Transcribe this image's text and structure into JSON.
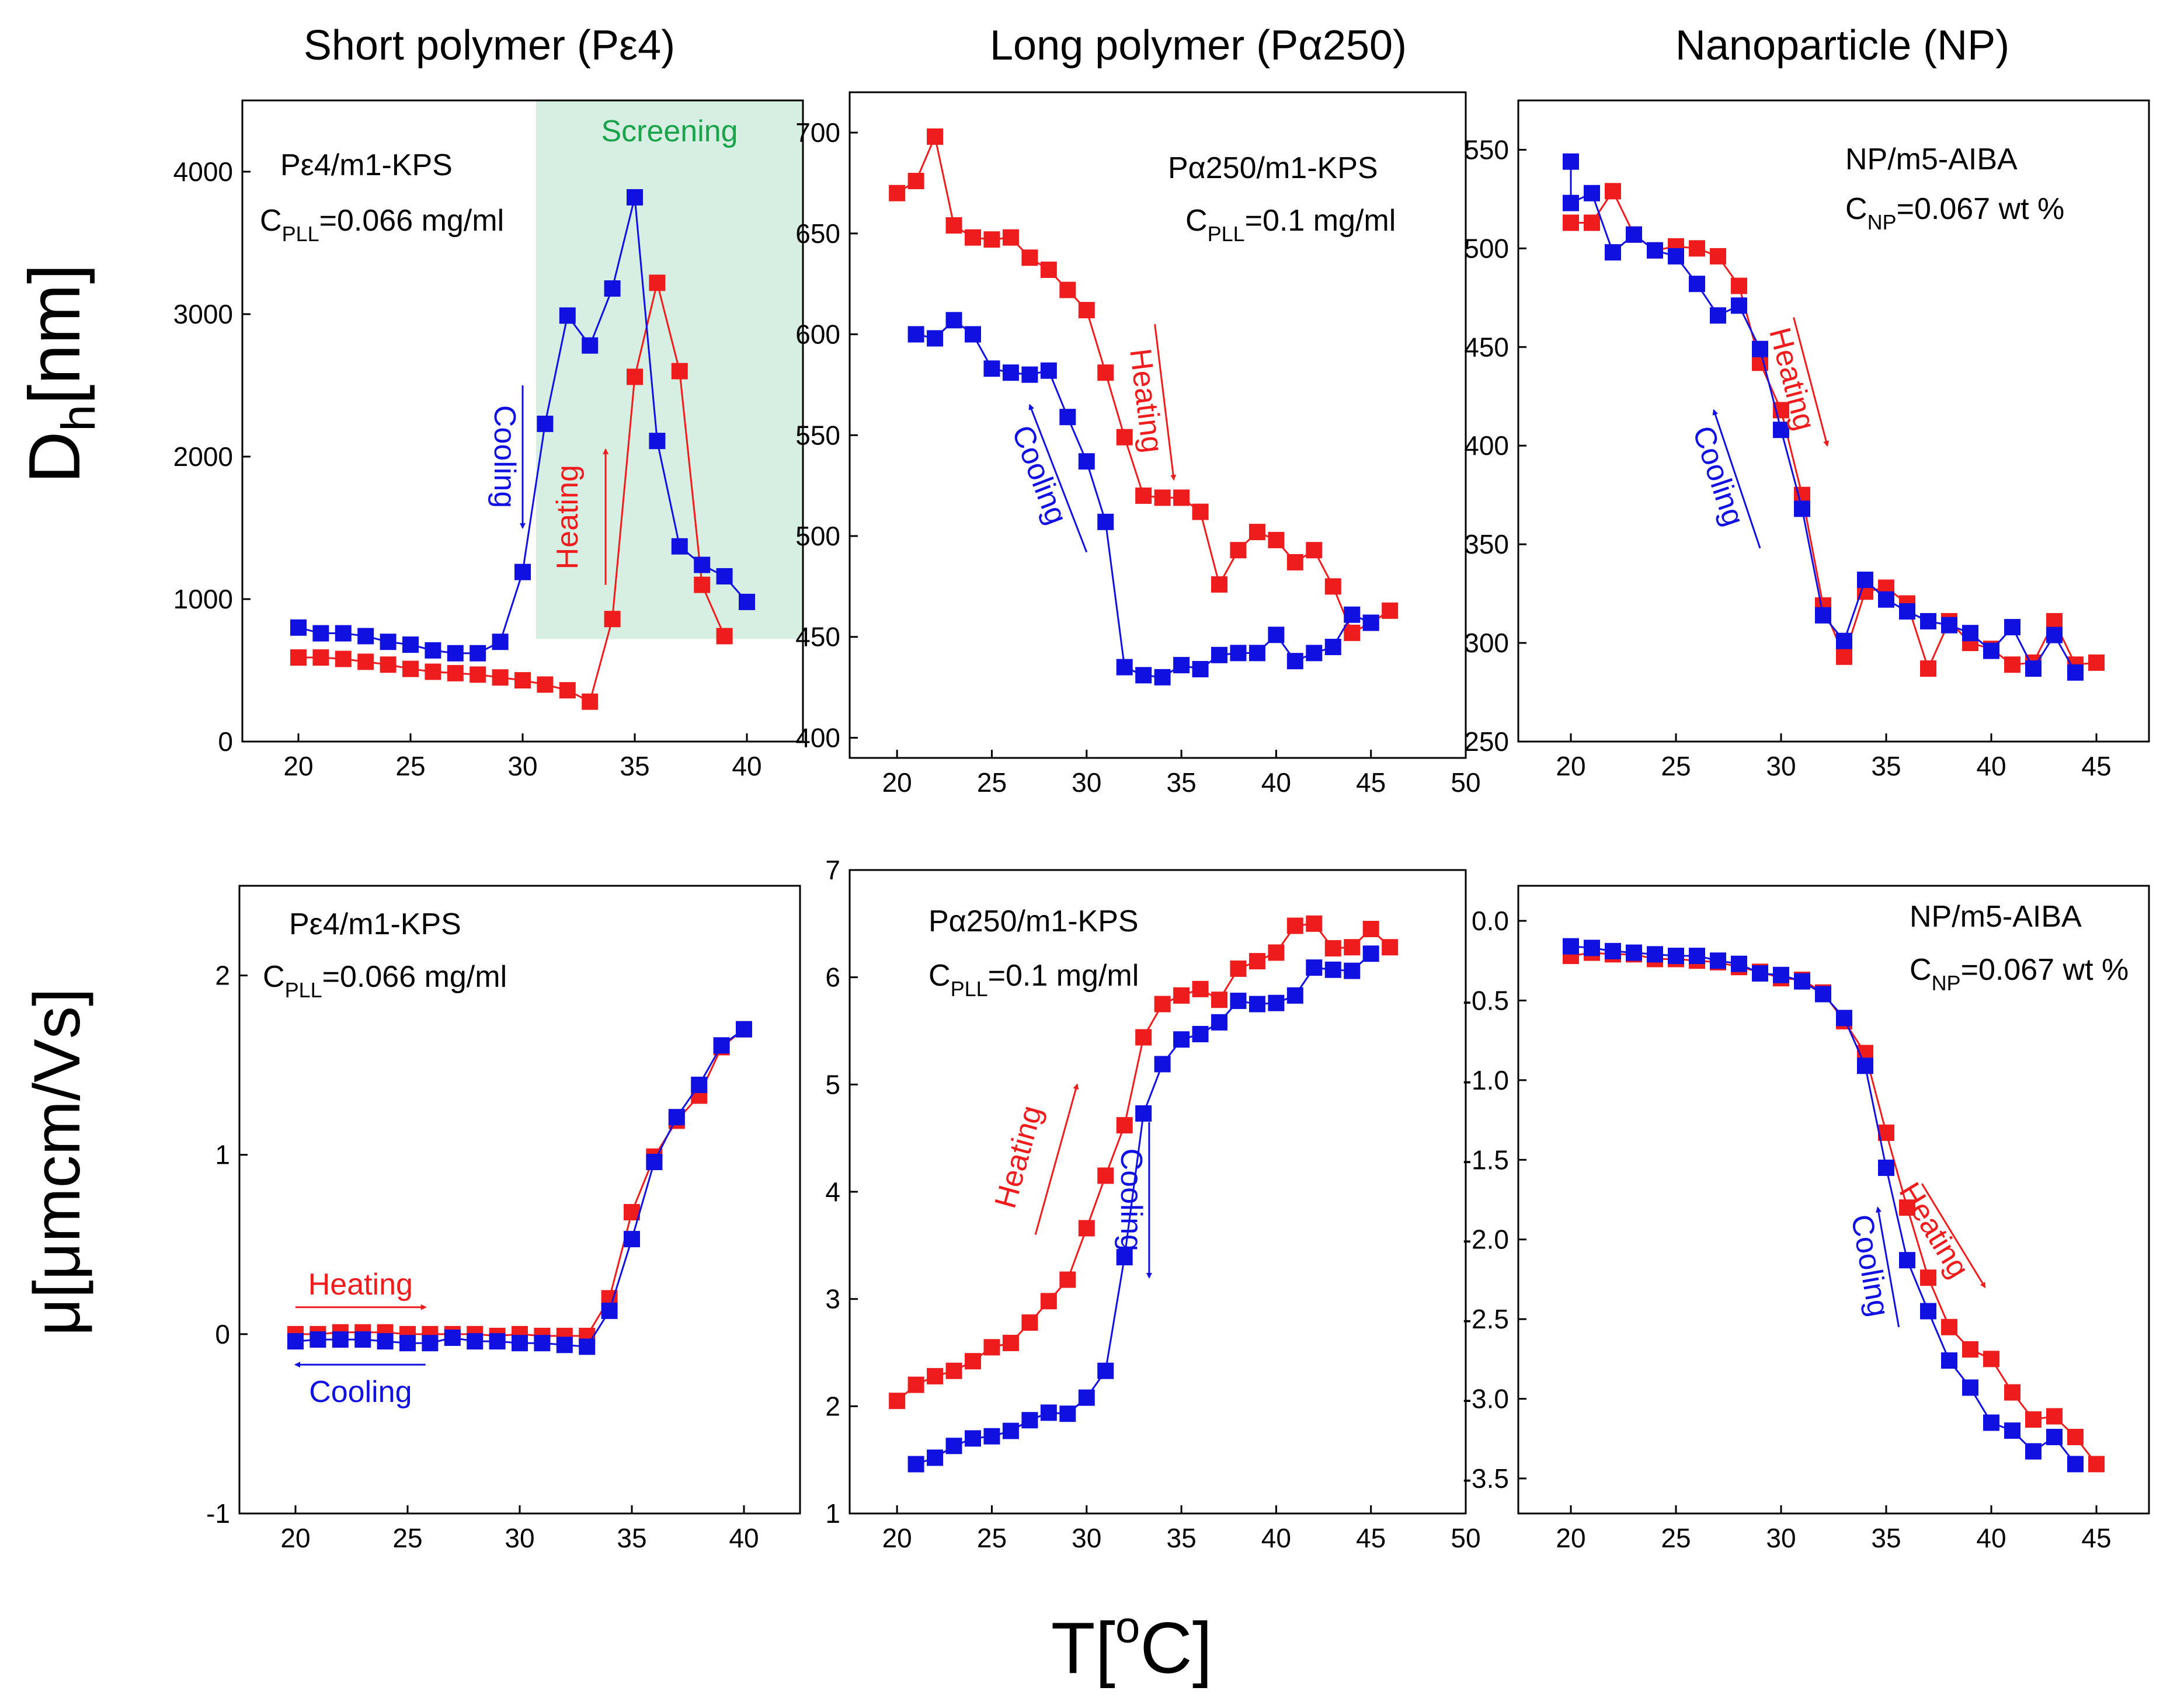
{
  "figure": {
    "column_titles": [
      "Short polymer (Pε4)",
      "Long polymer (Pα250)",
      "Nanoparticle (NP)"
    ],
    "y_label_top_main": "D",
    "y_label_top_sub": "h",
    "y_label_top_unit": "[nm]",
    "y_label_bottom": "μ[μmcm/Vs]",
    "x_label_main": "T[",
    "x_label_sup": "o",
    "x_label_end": "C]"
  },
  "colors": {
    "heating": "#ee1c1c",
    "cooling": "#1010e0",
    "screening": "#d6efe2",
    "screening_text": "#1aa34a"
  },
  "chart_data": [
    {
      "id": "dh-short",
      "type": "line",
      "xlim": [
        17.5,
        42.5
      ],
      "ylim": [
        0,
        4500
      ],
      "xticks": [
        20,
        25,
        30,
        35,
        40
      ],
      "yticks": [
        0,
        1000,
        2000,
        3000,
        4000
      ],
      "xlabel": "T[oC]",
      "ylabel": "Dh[nm]",
      "annotation_main": "Pε4/m1-KPS",
      "annotation_conc_pre": "C",
      "annotation_conc_sub": "PLL",
      "annotation_conc_post": "=0.066 mg/ml",
      "shaded_region": {
        "label": "Screening",
        "x": [
          30.6,
          42.5
        ],
        "y": [
          720,
          4500
        ]
      },
      "arrows": [
        {
          "label": "Heating",
          "color": "heating",
          "from": [
            33.7,
            1100
          ],
          "to": [
            33.7,
            2050
          ],
          "rotate": true
        },
        {
          "label": "Cooling",
          "color": "cooling",
          "from": [
            30.0,
            2500
          ],
          "to": [
            30.0,
            1500
          ],
          "rotate": true
        }
      ],
      "series": [
        {
          "name": "Heating",
          "color": "heating",
          "x": [
            20,
            21,
            22,
            23,
            24,
            25,
            26,
            27,
            28,
            29,
            30,
            31,
            32,
            33,
            34,
            35,
            36,
            37,
            38,
            39
          ],
          "y": [
            590,
            590,
            580,
            560,
            540,
            510,
            490,
            480,
            470,
            450,
            430,
            400,
            360,
            280,
            860,
            2560,
            3220,
            2600,
            1100,
            740
          ]
        },
        {
          "name": "Cooling",
          "color": "cooling",
          "x": [
            40,
            39,
            38,
            37,
            36,
            35,
            34,
            33,
            32,
            31,
            30,
            29,
            28,
            27,
            26,
            25,
            24,
            23,
            22,
            21,
            20
          ],
          "y": [
            980,
            1160,
            1240,
            1370,
            2110,
            3820,
            3180,
            2780,
            2990,
            2230,
            1190,
            700,
            620,
            620,
            640,
            680,
            700,
            740,
            760,
            760,
            800
          ]
        }
      ]
    },
    {
      "id": "dh-long",
      "type": "line",
      "xlim": [
        17.5,
        50
      ],
      "ylim": [
        390,
        720
      ],
      "xticks": [
        20,
        25,
        30,
        35,
        40,
        45,
        50
      ],
      "yticks": [
        400,
        450,
        500,
        550,
        600,
        650,
        700
      ],
      "xlabel": "T[oC]",
      "ylabel": "Dh[nm]",
      "annotation_main": "Pα250/m1-KPS",
      "annotation_conc_pre": "C",
      "annotation_conc_sub": "PLL",
      "annotation_conc_post": "=0.1 mg/ml",
      "arrows": [
        {
          "label": "Heating",
          "color": "heating",
          "from": [
            33.6,
            605
          ],
          "to": [
            34.6,
            528
          ],
          "rotate": true
        },
        {
          "label": "Cooling",
          "color": "cooling",
          "from": [
            30.0,
            492
          ],
          "to": [
            27.0,
            565
          ],
          "rotate": true
        }
      ],
      "series": [
        {
          "name": "Heating",
          "color": "heating",
          "x": [
            20,
            21,
            22,
            23,
            24,
            25,
            26,
            27,
            28,
            29,
            30,
            31,
            32,
            33,
            34,
            35,
            36,
            37,
            38,
            39,
            40,
            41,
            42,
            43,
            44,
            45,
            46
          ],
          "y": [
            670,
            676,
            698,
            654,
            648,
            647,
            648,
            638,
            632,
            622,
            612,
            581,
            549,
            520,
            519,
            519,
            512,
            476,
            493,
            502,
            498,
            487,
            493,
            475,
            452,
            457,
            463
          ]
        },
        {
          "name": "Cooling",
          "color": "cooling",
          "x": [
            45,
            44,
            43,
            42,
            41,
            40,
            39,
            38,
            37,
            36,
            35,
            34,
            33,
            32,
            31,
            30,
            29,
            28,
            27,
            26,
            25,
            24,
            23,
            22,
            21
          ],
          "y": [
            457,
            461,
            445,
            442,
            438,
            451,
            442,
            442,
            441,
            434,
            436,
            430,
            431,
            435,
            507,
            537,
            559,
            582,
            580,
            581,
            583,
            600,
            607,
            598,
            600
          ]
        }
      ]
    },
    {
      "id": "dh-np",
      "type": "line",
      "xlim": [
        17.5,
        47.5
      ],
      "ylim": [
        250,
        575
      ],
      "xticks": [
        20,
        25,
        30,
        35,
        40,
        45
      ],
      "yticks": [
        250,
        300,
        350,
        400,
        450,
        500,
        550
      ],
      "xlabel": "T[oC]",
      "ylabel": "Dh[nm]",
      "annotation_main": "NP/m5-AIBA",
      "annotation_conc_pre": "C",
      "annotation_conc_sub": "NP",
      "annotation_conc_post": "=0.067 wt %",
      "arrows": [
        {
          "label": "Heating",
          "color": "heating",
          "from": [
            30.6,
            465
          ],
          "to": [
            32.2,
            400
          ],
          "rotate": true
        },
        {
          "label": "Cooling",
          "color": "cooling",
          "from": [
            29.0,
            348
          ],
          "to": [
            26.8,
            418
          ],
          "rotate": true
        }
      ],
      "series": [
        {
          "name": "Heating",
          "color": "heating",
          "x": [
            20,
            21,
            22,
            23,
            24,
            25,
            26,
            27,
            28,
            29,
            30,
            31,
            32,
            33,
            34,
            35,
            36,
            37,
            38,
            39,
            40,
            41,
            42,
            43,
            44,
            45
          ],
          "y": [
            513,
            513,
            529,
            507,
            499,
            501,
            500,
            496,
            481,
            442,
            418,
            375,
            319,
            293,
            326,
            328,
            320,
            287,
            311,
            300,
            297,
            289,
            290,
            311,
            289,
            290
          ]
        },
        {
          "name": "Cooling",
          "color": "cooling",
          "x": [
            44,
            43,
            42,
            41,
            40,
            39,
            38,
            37,
            36,
            35,
            34,
            33,
            32,
            31,
            30,
            29,
            28,
            27,
            26,
            25,
            24,
            23,
            22,
            21,
            20,
            20
          ],
          "y": [
            285,
            304,
            287,
            308,
            296,
            305,
            309,
            311,
            316,
            322,
            332,
            301,
            314,
            368,
            408,
            449,
            471,
            466,
            482,
            496,
            499,
            507,
            498,
            528,
            523,
            544
          ]
        }
      ]
    },
    {
      "id": "mu-short",
      "type": "line",
      "xlim": [
        17.5,
        42.5
      ],
      "ylim": [
        -1,
        2.5
      ],
      "xticks": [
        20,
        25,
        30,
        35,
        40
      ],
      "yticks": [
        -1,
        0,
        1,
        2
      ],
      "xlabel": "T[oC]",
      "ylabel": "μ[μmcm/Vs]",
      "annotation_main": "Pε4/m1-KPS",
      "annotation_conc_pre": "C",
      "annotation_conc_sub": "PLL",
      "annotation_conc_post": "=0.066 mg/ml",
      "arrows": [
        {
          "label": "Heating",
          "color": "heating",
          "from": [
            20.0,
            0.15
          ],
          "to": [
            25.8,
            0.15
          ],
          "rotate": false
        },
        {
          "label": "Cooling",
          "color": "cooling",
          "from": [
            25.8,
            -0.17
          ],
          "to": [
            20.0,
            -0.17
          ],
          "rotate": false
        }
      ],
      "series": [
        {
          "name": "Heating",
          "color": "heating",
          "x": [
            20,
            21,
            22,
            23,
            24,
            25,
            26,
            27,
            28,
            29,
            30,
            31,
            32,
            33,
            34,
            35,
            36,
            37,
            38,
            39,
            40
          ],
          "y": [
            0,
            0,
            0.01,
            0.01,
            0.01,
            0,
            0,
            0,
            0,
            -0.01,
            0,
            -0.01,
            -0.01,
            -0.01,
            0.2,
            0.68,
            0.99,
            1.19,
            1.33,
            1.6,
            1.7
          ]
        },
        {
          "name": "Cooling",
          "color": "cooling",
          "x": [
            40,
            39,
            38,
            37,
            36,
            35,
            34,
            33,
            32,
            31,
            30,
            29,
            28,
            27,
            26,
            25,
            24,
            23,
            22,
            21,
            20
          ],
          "y": [
            1.7,
            1.61,
            1.39,
            1.21,
            0.96,
            0.53,
            0.13,
            -0.07,
            -0.06,
            -0.05,
            -0.05,
            -0.04,
            -0.04,
            -0.02,
            -0.05,
            -0.05,
            -0.04,
            -0.03,
            -0.03,
            -0.03,
            -0.04
          ]
        }
      ]
    },
    {
      "id": "mu-long",
      "type": "line",
      "xlim": [
        17.5,
        50
      ],
      "ylim": [
        1,
        7
      ],
      "xticks": [
        20,
        25,
        30,
        35,
        40,
        45,
        50
      ],
      "yticks": [
        1,
        2,
        3,
        4,
        5,
        6,
        7
      ],
      "xlabel": "T[oC]",
      "ylabel": "μ[μmcm/Vs]",
      "annotation_main": "Pα250/m1-KPS",
      "annotation_conc_pre": "C",
      "annotation_conc_sub": "PLL",
      "annotation_conc_post": "=0.1 mg/ml",
      "arrows": [
        {
          "label": "Heating",
          "color": "heating",
          "from": [
            27.3,
            3.6
          ],
          "to": [
            29.5,
            5.0
          ],
          "rotate": true
        },
        {
          "label": "Cooling",
          "color": "cooling",
          "from": [
            33.3,
            4.65
          ],
          "to": [
            33.3,
            3.2
          ],
          "rotate": true
        }
      ],
      "series": [
        {
          "name": "Heating",
          "color": "heating",
          "x": [
            20,
            21,
            22,
            23,
            24,
            25,
            26,
            27,
            28,
            29,
            30,
            31,
            32,
            33,
            34,
            35,
            36,
            37,
            38,
            39,
            40,
            41,
            42,
            43,
            44,
            45,
            46
          ],
          "y": [
            2.05,
            2.2,
            2.28,
            2.33,
            2.42,
            2.55,
            2.59,
            2.78,
            2.98,
            3.18,
            3.66,
            4.15,
            4.62,
            5.44,
            5.75,
            5.83,
            5.89,
            5.79,
            6.08,
            6.15,
            6.23,
            6.48,
            6.5,
            6.27,
            6.28,
            6.45,
            6.28
          ]
        },
        {
          "name": "Cooling",
          "color": "cooling",
          "x": [
            45,
            44,
            43,
            42,
            41,
            40,
            39,
            38,
            37,
            36,
            35,
            34,
            33,
            32,
            31,
            30,
            29,
            28,
            27,
            26,
            25,
            24,
            23,
            22,
            21
          ],
          "y": [
            6.22,
            6.06,
            6.07,
            6.09,
            5.83,
            5.76,
            5.75,
            5.78,
            5.58,
            5.47,
            5.42,
            5.19,
            4.73,
            3.39,
            2.33,
            2.08,
            1.93,
            1.94,
            1.87,
            1.77,
            1.72,
            1.7,
            1.63,
            1.52,
            1.46
          ]
        }
      ]
    },
    {
      "id": "mu-np",
      "type": "line",
      "xlim": [
        17.5,
        47.5
      ],
      "ylim": [
        -3.72,
        0.22
      ],
      "xticks": [
        20,
        25,
        30,
        35,
        40,
        45
      ],
      "yticks": [
        -3.5,
        -3.0,
        -2.5,
        -2.0,
        -1.5,
        -1.0,
        -0.5,
        0.0
      ],
      "xlabel": "T[oC]",
      "ylabel": "μ[μmcm/Vs]",
      "annotation_main": "NP/m5-AIBA",
      "annotation_conc_pre": "C",
      "annotation_conc_sub": "NP",
      "annotation_conc_post": "=0.067 wt %",
      "arrows": [
        {
          "label": "Heating",
          "color": "heating",
          "from": [
            36.7,
            -1.65
          ],
          "to": [
            39.7,
            -2.3
          ],
          "rotate": true
        },
        {
          "label": "Cooling",
          "color": "cooling",
          "from": [
            35.6,
            -2.55
          ],
          "to": [
            34.6,
            -1.8
          ],
          "rotate": true
        }
      ],
      "series": [
        {
          "name": "Heating",
          "color": "heating",
          "x": [
            20,
            21,
            22,
            23,
            24,
            25,
            26,
            27,
            28,
            29,
            30,
            31,
            32,
            33,
            34,
            35,
            36,
            37,
            38,
            39,
            40,
            41,
            42,
            43,
            44,
            45
          ],
          "y": [
            -0.22,
            -0.2,
            -0.21,
            -0.21,
            -0.24,
            -0.24,
            -0.25,
            -0.26,
            -0.29,
            -0.32,
            -0.36,
            -0.37,
            -0.45,
            -0.63,
            -0.83,
            -1.33,
            -1.8,
            -2.24,
            -2.55,
            -2.69,
            -2.75,
            -2.96,
            -3.13,
            -3.11,
            -3.24,
            -3.41
          ]
        },
        {
          "name": "Cooling",
          "color": "cooling",
          "x": [
            44,
            43,
            42,
            41,
            40,
            39,
            38,
            37,
            36,
            35,
            34,
            33,
            32,
            31,
            30,
            29,
            28,
            27,
            26,
            25,
            24,
            23,
            22,
            21,
            20
          ],
          "y": [
            -3.41,
            -3.24,
            -3.33,
            -3.2,
            -3.15,
            -2.93,
            -2.76,
            -2.45,
            -2.13,
            -1.55,
            -0.91,
            -0.61,
            -0.46,
            -0.38,
            -0.34,
            -0.33,
            -0.27,
            -0.25,
            -0.22,
            -0.22,
            -0.21,
            -0.2,
            -0.19,
            -0.17,
            -0.16
          ]
        }
      ]
    }
  ]
}
